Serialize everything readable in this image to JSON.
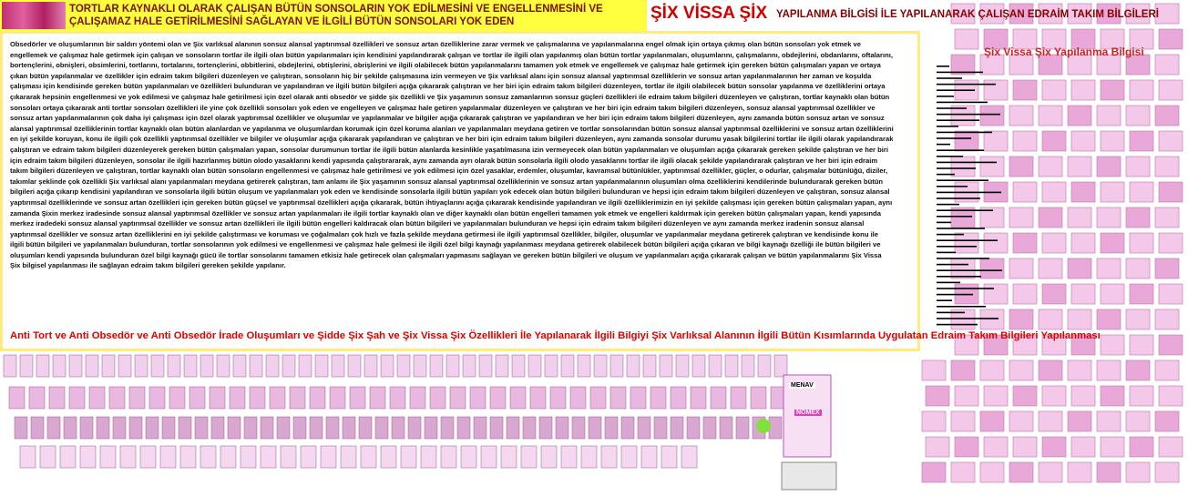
{
  "header": {
    "left_title": "TORTLAR KAYNAKLI OLARAK ÇALIŞAN BÜTÜN SONSOLARIN YOK EDİLMESİNİ VE ENGELLENMESİNİ VE ÇALIŞAMAZ HALE GETİRİLMESİNİ SAĞLAYAN VE İLGİLİ BÜTÜN SONSOLARI YOK EDEN",
    "brand": "ŞİX VİSSA ŞİX",
    "right_title": "YAPILANMA BİLGİSİ İLE YAPILANARAK ÇALIŞAN EDRAİM TAKIM BİLGİLERİ"
  },
  "body": {
    "paragraph": "Obsedörler ve oluşumlarının bir saldırı yöntemi olan ve Şix varlıksal alanının sonsuz alansal yaptırımsal özellikleri ve sonsuz artan özelliklerine zarar vermek ve çalışmalarına ve yapılanmalarına engel olmak için ortaya çıkmış olan bütün sonsoları yok etmek ve engellemek ve çalışmaz hale getirmek için çalışan ve sonsoların tortlar ile ilgili olan bütün yapılanmaları için kendisini yapılandırarak çalışan ve tortlar ile ilgili olan yapılanmış olan bütün tortlar yapılanmaları, oluşumlarını, çalışmalarını, obdejlerini, obdanlarını, oftalarını, bortençlerini, obnişleri, obsimlerini, tortlarını, tortalarını, tortençlerini, obbitlerini, obdejlerini, obtişlerini, obrişlerini ve ilgili olabilecek bütün yapılanmalarını tamamen yok etmek ve engellemek ve çalışmaz hale getirmek için gereken bütün çalışmaları yapan ve ortaya çıkan bütün yapılanmalar ve özellikler için edraim takım bilgileri düzenleyen ve çalıştıran, sonsoların hiç bir şekilde çalışmasına izin vermeyen ve Şix varlıksal alanı için sonsuz alansal yaptırımsal özelliklerin ve sonsuz artan yapılanmalarının her zaman ve koşulda çalışması için kendisinde gereken bütün yapılanmaları ve özellikleri bulunduran ve yapılandıran ve ilgili bütün bilgileri açığa çıkararak çalıştıran ve her biri için edraim takım bilgileri düzenleyen, tortlar ile ilgili olabilecek bütün sonsolar yapılanma ve özelliklerini ortaya çıkararak hepsinin engellenmesi ve yok edilmesi ve çalışmaz hale getirilmesi için özel olarak anti obsedör ve şidde şix özellikli ve Şix yaşamının sonsuz zamanlarının sonsuz güçleri özellikleri ile edraim takım bilgileri düzenleyen ve çalıştıran, tortlar kaynaklı olan bütün sonsoları ortaya çıkararak anti tortlar sonsoları özellikleri ile yine çok özellikli sonsoları yok eden ve engelleyen ve çalışmaz hale getiren yapılanmalar düzenleyen ve çalıştıran ve her biri için edraim takım bilgileri düzenleyen, sonsuz alansal yaptırımsal özellikler ve sonsuz artan yapılanmalarının çok daha iyi çalışması için özel olarak yaptırımsal özellikler ve oluşumlar ve yapılanmalar ve bilgiler açığa çıkararak çalıştıran ve yapılandıran ve her biri için edraim takım bilgileri düzenleyen, aynı zamanda bütün sonsuz artan ve sonsuz alansal yaptırımsal özelliklerinin tortlar kaynaklı olan bütün alanlardan ve yapılanma ve oluşumlardan korumak için özel koruma alanları ve yapılanmaları meydana getiren ve tortlar sonsolarından bütün sonsuz alansal yaptırımsal özelliklerini ve sonsuz artan özelliklerini en iyi şekilde koruyan, konu ile ilgili çok özellikli yaptırımsal özellikler ve bilgiler ve oluşumlar açığa çıkararak yapılandıran ve çalıştıran ve her biri için edraim takım bilgileri düzenleyen, aynı zamanda sonsolar durumu yasak bilgilerini tortlar ile ilgili olarak yapılandırarak çalıştıran ve edraim takım bilgileri düzenleyerek gereken bütün çalışmaları yapan, sonsolar durumunun tortlar ile ilgili bütün alanlarda kesinlikle yaşatılmasına izin vermeyecek olan bütün yapılanmaları ve oluşumları açığa çıkararak gereken şekilde çalıştıran ve her biri için edraim takım bilgileri düzenleyen, sonsolar ile ilgili hazırlanmış bütün olodo yasaklarını kendi yapısında çalıştırararak, aynı zamanda ayrı olarak bütün sonsolarla ilgili olodo yasaklarını tortlar ile ilgili olacak şekilde yapılandırarak çalıştıran ve her biri için edraim takım bilgileri düzenleyen ve çalıştıran, tortlar kaynaklı olan bütün sonsoların engellenmesi ve çalışmaz hale getirilmesi ve yok edilmesi için özel yasaklar, erdemler, oluşumlar, kavramsal bütünlükler, yaptırımsal özellikler, güçler, o odurlar, çalışmalar bütünlüğü, diziler, takımlar şeklinde çok özellikli Şix varlıksal alanı yapılanmaları meydana getirerek çalıştıran, tam anlamı ile Şix yaşamının sonsuz alansal yaptırımsal özelliklerinin ve sonsuz artan yapılanmalarının oluşumları olma özelliklerini kendilerinde bulundurarak gereken bütün bilgileri açığa çıkarıp kendisini yapılandıran ve sonsolarla ilgili bütün oluşum ve yapılanmaları yok eden ve kendisinde sonsolarla ilgili bütün yapıları yok edecek olan bütün bilgileri bulunduran ve hepsi için edraim takım bilgileri düzenleyen ve çalıştıran, sonsuz alansal yaptırımsal özelliklerinde ve sonsuz artan özellikleri için gereken bütün güçsel ve yaptırımsal özellikleri açığa çıkararak, bütün ihtiyaçlarını açığa çıkararak kendisinde yapılandıran ve ilgili özelliklerimizin en iyi şekilde çalışması için gereken bütün çalışmaları yapan, aynı zamanda Şixin merkez iradesinde sonsuz alansal yaptırımsal özellikler ve sonsuz artan yapılanmaları ile ilgili tortlar kaynaklı olan ve diğer kaynaklı olan bütün engelleri tamamen yok etmek ve engelleri kaldırmak için gereken bütün çalışmaları yapan, kendi yapısında merkez iradedeki sonsuz alansal yaptırımsal özellikler ve sonsuz artan özellikleri ile ilgili bütün engelleri kaldıracak olan bütün bilgileri ve yapılanmaları bulunduran ve hepsi için edraim takım bilgileri düzenleyen ve aynı zamanda merkez iradenin sonsuz alansal yaptırımsal özellikler ve sonsuz artan özelliklerini en iyi şekilde çalıştırması ve koruması ve çoğalmaları çok hızlı ve fazla şekilde meydana getirmesi ile ilgili yaptırımsal özellikler, bilgiler, oluşumlar ve yapılanmalar meydana getirerek çalıştıran ve kendisinde konu ile ilgili bütün bilgileri ve yapılanmaları bulunduran, tortlar sonsolarının yok edilmesi ve engellenmesi ve çalışmaz hale gelmesi ile ilgili özel bilgi kaynağı yapılanması meydana getirerek olabilecek bütün bilgileri açığa çıkaran ve bilgi kaynağı özelliği ile bütün bilgileri ve oluşumları kendi yapısında bulunduran özel bilgi kaynağı gücü ile tortlar sonsolarını tamamen etkisiz hale getirecek olan çalışmaları yapmasını sağlayan ve gereken bütün bilgileri ve oluşum ve yapılanmaları açığa çıkararak çalışan ve bütün yapılanmalarını Şix Vissa Şix bilgisel yapılanması ile sağlayan edraim takım bilgileri gereken şekilde yapılanır.",
    "footer": "Anti Tort ve Anti Obsedör ve Anti Obsedör İrade Oluşumları ve Şidde Şix Şah ve Şix Vissa Şix Özellikleri İle Yapılanarak İlgili Bilgiyi Şix Varlıksal Alanının İlgili Bütün Kısımlarında Uygulatan Edraim Takım Bilgileri Yapılanması"
  },
  "side_panel": {
    "title": "Şix Vissa Şix Yapılanma Bilgisi"
  },
  "thumbnails": {
    "labels": [
      "MENAV",
      "NOMEX"
    ]
  }
}
